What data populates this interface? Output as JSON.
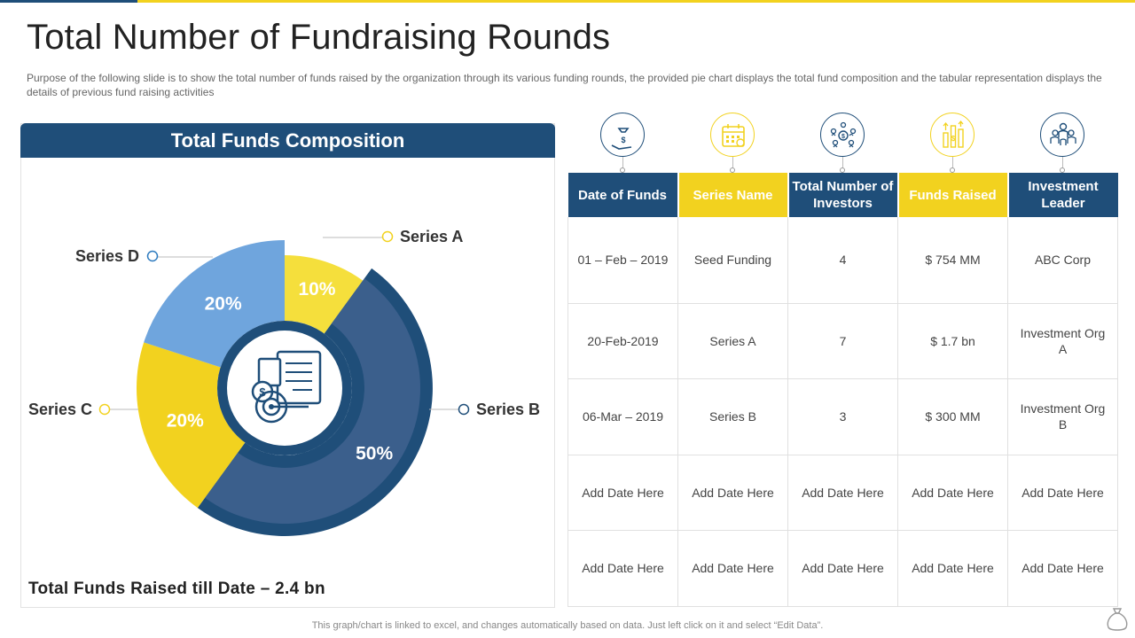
{
  "slide": {
    "title": "Total Number of Fundraising Rounds",
    "subtitle": "Purpose of the following slide is to show the total number of funds raised by the organization through its various funding rounds, the provided pie chart displays the total fund composition and the tabular representation displays the details of previous fund raising activities",
    "footnote": "This graph/chart is linked to excel, and changes automatically based on data. Just left click on it and select “Edit Data”."
  },
  "left_panel": {
    "header": "Total Funds Composition",
    "total_line": "Total Funds Raised till Date – 2.4 bn",
    "center_icon": "financial-report-icon"
  },
  "chart_data": {
    "type": "pie",
    "title": "Total Funds Composition",
    "categories": [
      "Series A",
      "Series B",
      "Series C",
      "Series D"
    ],
    "values": [
      10,
      50,
      20,
      20
    ],
    "value_labels": [
      "10%",
      "50%",
      "20%",
      "20%"
    ],
    "colors": [
      "#f5df3c",
      "#3b5f8c",
      "#f2d21f",
      "#6fa5dd"
    ],
    "outer_ring_color": "#1f4e79",
    "legend": "callout-labels"
  },
  "table": {
    "header_icons": [
      "money-bag-icon",
      "calendar-icon",
      "investors-network-icon",
      "funds-growth-icon",
      "team-leader-icon"
    ],
    "header_icon_colors": [
      "#1f4e79",
      "#f2d21f",
      "#1f4e79",
      "#f2d21f",
      "#1f4e79"
    ],
    "headers": [
      "Date of Funds",
      "Series Name",
      "Total Number of Investors",
      "Funds Raised",
      "Investment Leader"
    ],
    "rows": [
      [
        "01 – Feb – 2019",
        "Seed Funding",
        "4",
        "$ 754 MM",
        "ABC Corp"
      ],
      [
        "20-Feb-2019",
        "Series A",
        "7",
        "$ 1.7 bn",
        "Investment Org A"
      ],
      [
        "06-Mar – 2019",
        "Series B",
        "3",
        "$ 300 MM",
        "Investment Org B"
      ],
      [
        "Add Date Here",
        "Add Date Here",
        "Add Date Here",
        "Add Date Here",
        "Add Date Here"
      ],
      [
        "Add Date Here",
        "Add Date Here",
        "Add Date Here",
        "Add Date Here",
        "Add Date Here"
      ]
    ]
  },
  "footer": {
    "icon": "money-bag-outline-icon"
  }
}
